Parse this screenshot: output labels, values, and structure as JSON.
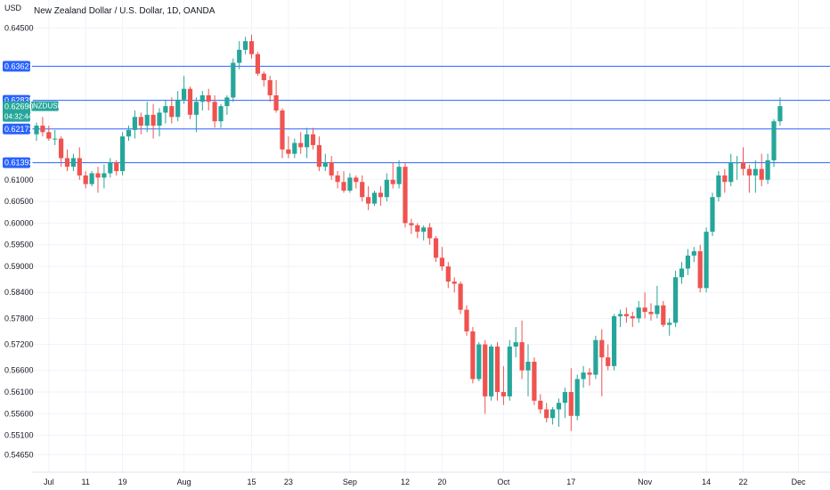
{
  "header": {
    "title": "New Zealand Dollar / U.S. Dollar, 1D, OANDA",
    "currency": "USD"
  },
  "colors": {
    "up": "#26a69a",
    "down": "#ef5350",
    "hline": "#2962ff",
    "axis_text": "#131722",
    "background": "#ffffff"
  },
  "chart_data": {
    "type": "candlestick",
    "symbol": "NZDUSD",
    "title": "New Zealand Dollar / U.S. Dollar, 1D, OANDA",
    "ylabel": "USD",
    "ylim": [
      0.5425,
      0.6515
    ],
    "price_ticks": [
      "0.64500",
      "0.61000",
      "0.60500",
      "0.60000",
      "0.59500",
      "0.59000",
      "0.58400",
      "0.57800",
      "0.57200",
      "0.56600",
      "0.56100",
      "0.55600",
      "0.55100",
      "0.54650"
    ],
    "x_labels": [
      {
        "label": "Jul",
        "index": 2
      },
      {
        "label": "11",
        "index": 8
      },
      {
        "label": "19",
        "index": 14
      },
      {
        "label": "Aug",
        "index": 24
      },
      {
        "label": "15",
        "index": 35
      },
      {
        "label": "23",
        "index": 41
      },
      {
        "label": "Sep",
        "index": 51
      },
      {
        "label": "12",
        "index": 60
      },
      {
        "label": "20",
        "index": 66
      },
      {
        "label": "Oct",
        "index": 76
      },
      {
        "label": "17",
        "index": 87
      },
      {
        "label": "Nov",
        "index": 99
      },
      {
        "label": "14",
        "index": 109
      },
      {
        "label": "22",
        "index": 115
      },
      {
        "label": "Dec",
        "index": 124
      }
    ],
    "horizontal_lines": [
      {
        "price": 0.63621,
        "label": "0.63621"
      },
      {
        "price": 0.62835,
        "label": "0.62835"
      },
      {
        "price": 0.62173,
        "label": "0.62173"
      },
      {
        "price": 0.61393,
        "label": "0.61393"
      }
    ],
    "last_price": {
      "symbol": "NZDUSD",
      "price": 0.6269,
      "label": "0.62690",
      "countdown": "04:32:44"
    },
    "candles": [
      [
        0.6205,
        0.6232,
        0.619,
        0.6225
      ],
      [
        0.6225,
        0.6245,
        0.62,
        0.621
      ],
      [
        0.621,
        0.6225,
        0.619,
        0.6195
      ],
      [
        0.6195,
        0.6215,
        0.618,
        0.6195
      ],
      [
        0.6195,
        0.62,
        0.613,
        0.615
      ],
      [
        0.615,
        0.617,
        0.612,
        0.613
      ],
      [
        0.613,
        0.616,
        0.612,
        0.615
      ],
      [
        0.615,
        0.6175,
        0.61,
        0.611
      ],
      [
        0.611,
        0.612,
        0.608,
        0.609
      ],
      [
        0.609,
        0.612,
        0.6085,
        0.6115
      ],
      [
        0.6115,
        0.613,
        0.607,
        0.6105
      ],
      [
        0.6105,
        0.6135,
        0.608,
        0.6115
      ],
      [
        0.6115,
        0.615,
        0.6105,
        0.614
      ],
      [
        0.614,
        0.6145,
        0.611,
        0.612
      ],
      [
        0.612,
        0.621,
        0.611,
        0.62
      ],
      [
        0.62,
        0.6225,
        0.619,
        0.6215
      ],
      [
        0.6215,
        0.626,
        0.6195,
        0.6245
      ],
      [
        0.6245,
        0.6255,
        0.6205,
        0.6225
      ],
      [
        0.6225,
        0.628,
        0.621,
        0.625
      ],
      [
        0.625,
        0.6275,
        0.6195,
        0.6225
      ],
      [
        0.6225,
        0.6265,
        0.62,
        0.6255
      ],
      [
        0.6255,
        0.6285,
        0.623,
        0.627
      ],
      [
        0.627,
        0.629,
        0.623,
        0.6245
      ],
      [
        0.6245,
        0.6305,
        0.6235,
        0.6285
      ],
      [
        0.6285,
        0.634,
        0.6275,
        0.631
      ],
      [
        0.631,
        0.6315,
        0.624,
        0.625
      ],
      [
        0.625,
        0.629,
        0.621,
        0.628
      ],
      [
        0.628,
        0.6305,
        0.626,
        0.6295
      ],
      [
        0.6295,
        0.631,
        0.626,
        0.628
      ],
      [
        0.628,
        0.6295,
        0.622,
        0.6235
      ],
      [
        0.6235,
        0.6275,
        0.622,
        0.627
      ],
      [
        0.627,
        0.6295,
        0.625,
        0.629
      ],
      [
        0.629,
        0.638,
        0.628,
        0.637
      ],
      [
        0.637,
        0.642,
        0.6355,
        0.64
      ],
      [
        0.64,
        0.643,
        0.639,
        0.642
      ],
      [
        0.642,
        0.6435,
        0.638,
        0.639
      ],
      [
        0.639,
        0.6395,
        0.634,
        0.6345
      ],
      [
        0.6345,
        0.635,
        0.6315,
        0.633
      ],
      [
        0.633,
        0.634,
        0.628,
        0.6295
      ],
      [
        0.6295,
        0.633,
        0.6255,
        0.626
      ],
      [
        0.626,
        0.6265,
        0.615,
        0.617
      ],
      [
        0.617,
        0.62,
        0.615,
        0.616
      ],
      [
        0.616,
        0.6195,
        0.615,
        0.6185
      ],
      [
        0.6185,
        0.621,
        0.616,
        0.6175
      ],
      [
        0.6175,
        0.622,
        0.615,
        0.6205
      ],
      [
        0.6205,
        0.622,
        0.617,
        0.618
      ],
      [
        0.618,
        0.62,
        0.612,
        0.613
      ],
      [
        0.613,
        0.616,
        0.612,
        0.614
      ],
      [
        0.614,
        0.6155,
        0.61,
        0.611
      ],
      [
        0.611,
        0.612,
        0.608,
        0.6095
      ],
      [
        0.6095,
        0.612,
        0.607,
        0.6075
      ],
      [
        0.6075,
        0.6115,
        0.607,
        0.6105
      ],
      [
        0.6105,
        0.611,
        0.608,
        0.6095
      ],
      [
        0.6095,
        0.611,
        0.605,
        0.606
      ],
      [
        0.606,
        0.6085,
        0.603,
        0.6045
      ],
      [
        0.6045,
        0.6075,
        0.604,
        0.607
      ],
      [
        0.607,
        0.6085,
        0.604,
        0.606
      ],
      [
        0.606,
        0.6115,
        0.605,
        0.61
      ],
      [
        0.61,
        0.614,
        0.608,
        0.609
      ],
      [
        0.609,
        0.6145,
        0.608,
        0.613
      ],
      [
        0.613,
        0.614,
        0.599,
        0.6
      ],
      [
        0.6,
        0.601,
        0.5975,
        0.5995
      ],
      [
        0.5995,
        0.6,
        0.5965,
        0.598
      ],
      [
        0.598,
        0.5995,
        0.596,
        0.599
      ],
      [
        0.599,
        0.6,
        0.595,
        0.5965
      ],
      [
        0.5965,
        0.597,
        0.591,
        0.592
      ],
      [
        0.592,
        0.5945,
        0.589,
        0.59
      ],
      [
        0.59,
        0.591,
        0.585,
        0.5865
      ],
      [
        0.5865,
        0.5875,
        0.584,
        0.586
      ],
      [
        0.586,
        0.5865,
        0.579,
        0.58
      ],
      [
        0.58,
        0.581,
        0.574,
        0.575
      ],
      [
        0.575,
        0.576,
        0.563,
        0.564
      ],
      [
        0.564,
        0.5725,
        0.5635,
        0.572
      ],
      [
        0.572,
        0.573,
        0.556,
        0.56
      ],
      [
        0.56,
        0.572,
        0.559,
        0.5715
      ],
      [
        0.5715,
        0.5725,
        0.559,
        0.561
      ],
      [
        0.561,
        0.567,
        0.558,
        0.56
      ],
      [
        0.56,
        0.573,
        0.559,
        0.5715
      ],
      [
        0.5715,
        0.576,
        0.569,
        0.5725
      ],
      [
        0.5725,
        0.5775,
        0.564,
        0.566
      ],
      [
        0.566,
        0.572,
        0.56,
        0.568
      ],
      [
        0.568,
        0.569,
        0.558,
        0.559
      ],
      [
        0.559,
        0.5605,
        0.556,
        0.557
      ],
      [
        0.557,
        0.5585,
        0.554,
        0.555
      ],
      [
        0.555,
        0.5575,
        0.5535,
        0.557
      ],
      [
        0.557,
        0.5595,
        0.553,
        0.5585
      ],
      [
        0.5585,
        0.562,
        0.555,
        0.561
      ],
      [
        0.561,
        0.5665,
        0.552,
        0.5555
      ],
      [
        0.5555,
        0.565,
        0.5545,
        0.564
      ],
      [
        0.564,
        0.567,
        0.562,
        0.5655
      ],
      [
        0.5655,
        0.5665,
        0.5625,
        0.565
      ],
      [
        0.565,
        0.574,
        0.564,
        0.573
      ],
      [
        0.573,
        0.5755,
        0.56,
        0.569
      ],
      [
        0.569,
        0.572,
        0.566,
        0.567
      ],
      [
        0.567,
        0.579,
        0.566,
        0.5785
      ],
      [
        0.5785,
        0.58,
        0.576,
        0.579
      ],
      [
        0.579,
        0.5805,
        0.577,
        0.5785
      ],
      [
        0.5785,
        0.5795,
        0.576,
        0.578
      ],
      [
        0.578,
        0.582,
        0.577,
        0.5805
      ],
      [
        0.5805,
        0.584,
        0.578,
        0.5795
      ],
      [
        0.5795,
        0.5815,
        0.5775,
        0.579
      ],
      [
        0.579,
        0.5855,
        0.578,
        0.581
      ],
      [
        0.581,
        0.582,
        0.576,
        0.5765
      ],
      [
        0.5765,
        0.578,
        0.574,
        0.577
      ],
      [
        0.577,
        0.589,
        0.576,
        0.5875
      ],
      [
        0.5875,
        0.591,
        0.586,
        0.5895
      ],
      [
        0.5895,
        0.594,
        0.588,
        0.5925
      ],
      [
        0.5925,
        0.5945,
        0.591,
        0.5935
      ],
      [
        0.5935,
        0.595,
        0.584,
        0.585
      ],
      [
        0.585,
        0.599,
        0.584,
        0.598
      ],
      [
        0.598,
        0.607,
        0.597,
        0.606
      ],
      [
        0.606,
        0.612,
        0.605,
        0.611
      ],
      [
        0.611,
        0.6125,
        0.607,
        0.6095
      ],
      [
        0.6095,
        0.616,
        0.6085,
        0.614
      ],
      [
        0.614,
        0.6155,
        0.61,
        0.614
      ],
      [
        0.614,
        0.6175,
        0.611,
        0.6125
      ],
      [
        0.6125,
        0.6135,
        0.607,
        0.611
      ],
      [
        0.611,
        0.6145,
        0.607,
        0.6125
      ],
      [
        0.6125,
        0.616,
        0.6085,
        0.61
      ],
      [
        0.61,
        0.616,
        0.609,
        0.6145
      ],
      [
        0.6145,
        0.624,
        0.613,
        0.6235
      ],
      [
        0.6235,
        0.629,
        0.6225,
        0.627
      ]
    ]
  }
}
